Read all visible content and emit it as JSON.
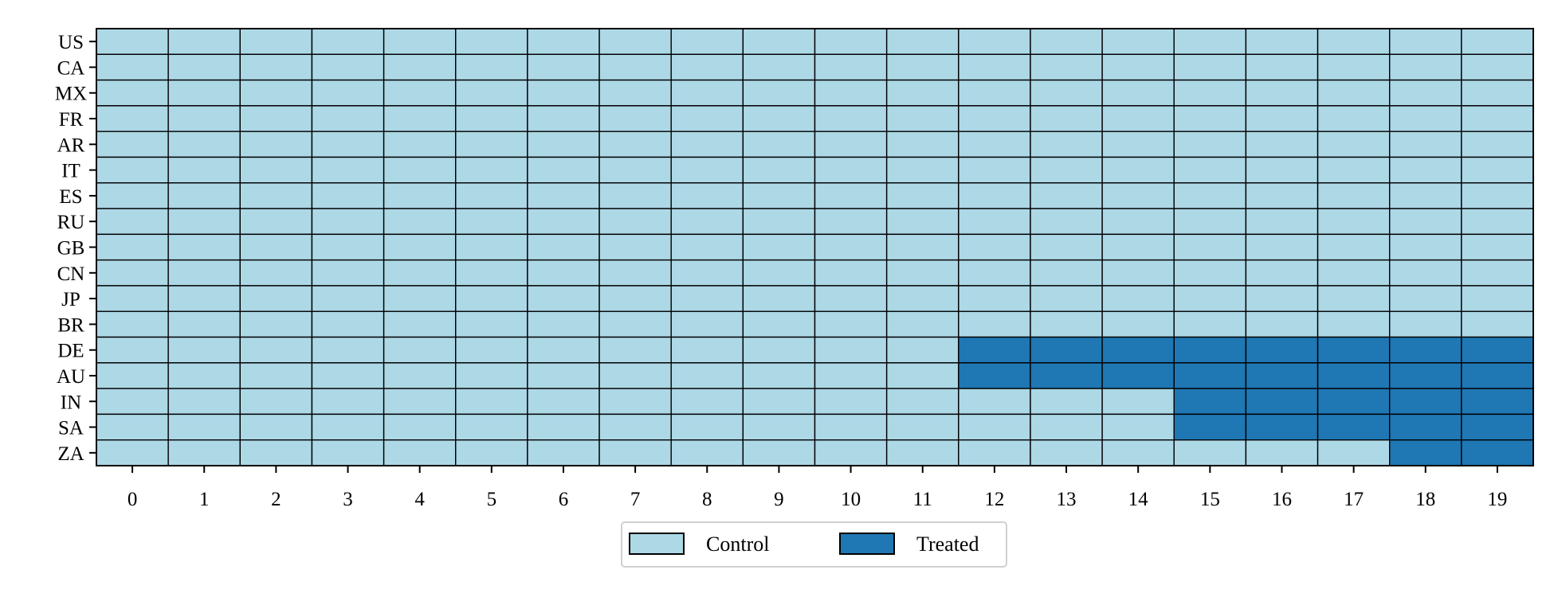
{
  "chart_data": {
    "type": "heatmap",
    "title": "",
    "xlabel": "",
    "ylabel": "",
    "x": [
      0,
      1,
      2,
      3,
      4,
      5,
      6,
      7,
      8,
      9,
      10,
      11,
      12,
      13,
      14,
      15,
      16,
      17,
      18,
      19
    ],
    "y": [
      "US",
      "CA",
      "MX",
      "FR",
      "AR",
      "IT",
      "ES",
      "RU",
      "GB",
      "CN",
      "JP",
      "BR",
      "DE",
      "AU",
      "IN",
      "SA",
      "ZA"
    ],
    "treatment_start": {
      "DE": 12,
      "AU": 12,
      "IN": 15,
      "SA": 15,
      "ZA": 18
    },
    "legend": {
      "position": "bottom-center",
      "entries": [
        {
          "label": "Control",
          "color": "#add8e6"
        },
        {
          "label": "Treated",
          "color": "#1f77b4"
        }
      ]
    },
    "grid": false
  }
}
